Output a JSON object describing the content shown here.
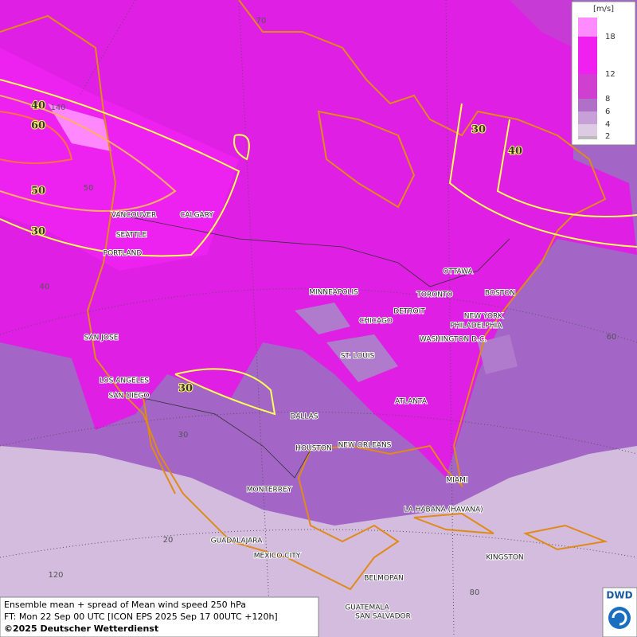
{
  "legend": {
    "unit": "[m/s]",
    "levels": [
      "18",
      "12",
      "8",
      "6",
      "4",
      "2"
    ]
  },
  "contour_labels": [
    "40",
    "60",
    "50",
    "30",
    "30",
    "40",
    "30"
  ],
  "graticule_labels": [
    "70",
    "140",
    "50",
    "40",
    "60",
    "30",
    "20",
    "120",
    "80"
  ],
  "cities": [
    "VANCOUVER",
    "CALGARY",
    "SEATTLE",
    "PORTLAND",
    "MINNEAPOLIS",
    "OTTAWA",
    "TORONTO",
    "DETROIT",
    "BOSTON",
    "CHICAGO",
    "NEW YORK",
    "PHILADELPHIA",
    "WASHINGTON D.C.",
    "SAN JOSE",
    "ST. LOUIS",
    "LOS ANGELES",
    "SAN DIEGO",
    "ATLANTA",
    "DALLAS",
    "HOUSTON",
    "NEW ORLEANS",
    "MIAMI",
    "MONTERREY",
    "LA HABANA (HAVANA)",
    "GUADALAJARA",
    "MEXICO CITY",
    "BELMOPAN",
    "KINGSTON",
    "GUATEMALA",
    "SAN SALVADOR"
  ],
  "footer": {
    "line1": "Ensemble mean + spread of Mean wind speed 250 hPa",
    "line2": "FT: Mon 22 Sep 00 UTC [ICON EPS 2025 Sep 17 00UTC +120h]",
    "line3": "©2025 Deutscher Wetterdienst"
  },
  "logo": "DWD"
}
